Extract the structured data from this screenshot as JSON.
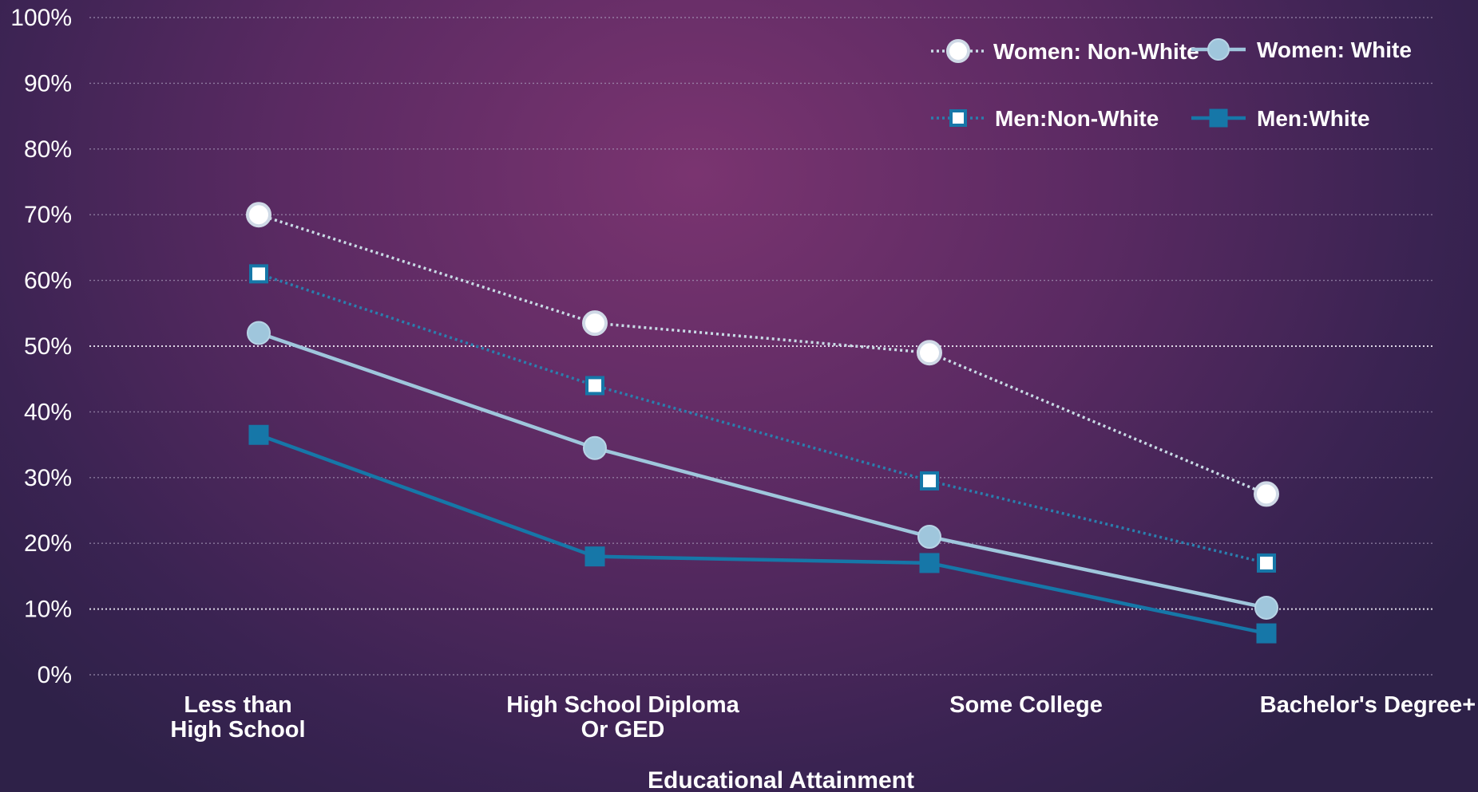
{
  "chart_data": {
    "type": "line",
    "title": "",
    "xlabel": "Educational Attainment",
    "ylabel": "",
    "ylim": [
      0,
      100
    ],
    "yticks": [
      "0%",
      "10%",
      "20%",
      "30%",
      "40%",
      "50%",
      "60%",
      "70%",
      "80%",
      "90%",
      "100%"
    ],
    "categories": [
      [
        "Less than",
        "High School"
      ],
      [
        "High School Diploma",
        "Or GED"
      ],
      [
        "Some College"
      ],
      [
        "Bachelor's Degree+"
      ]
    ],
    "grid": true,
    "legend_position": "top-right",
    "series": [
      {
        "name": "Women: Non-White",
        "values": [
          70,
          53.5,
          49,
          27.5
        ],
        "color": "#ffffff",
        "line_color": "#c9dbe6",
        "marker": "circle-open",
        "line": "dotted"
      },
      {
        "name": "Women: White",
        "values": [
          52,
          34.5,
          21,
          10.2
        ],
        "color": "#9fc6dc",
        "line_color": "#9fc6dc",
        "marker": "circle",
        "line": "solid"
      },
      {
        "name": "Men:Non-White",
        "values": [
          61,
          44,
          29.5,
          17
        ],
        "color": "#ffffff",
        "line_color": "#2a7fae",
        "marker": "square-open",
        "line": "dotted"
      },
      {
        "name": "Men:White",
        "values": [
          36.5,
          18,
          17,
          6.3
        ],
        "color": "#1677a8",
        "line_color": "#1677a8",
        "marker": "square",
        "line": "solid"
      }
    ]
  }
}
